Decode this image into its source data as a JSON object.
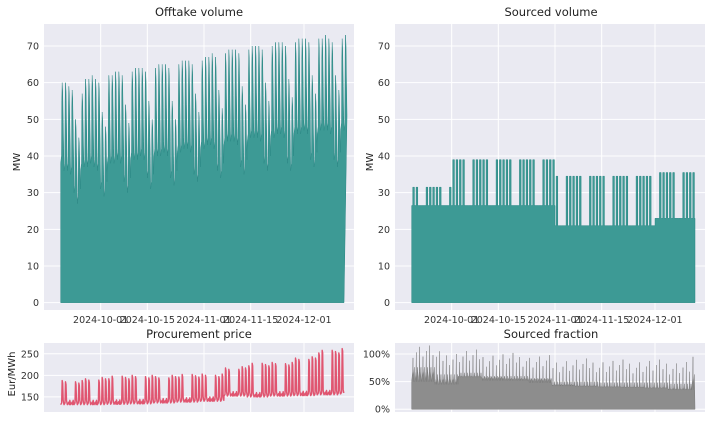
{
  "colors": {
    "panel_bg": "#eaeaf2",
    "volume_fill": "#3d9a95",
    "volume_line": "#2a8784",
    "price_line": "#e05570",
    "fraction_fill": "#8d8d8d"
  },
  "chart_data": [
    {
      "id": "offtake",
      "type": "area",
      "title": "Offtake volume",
      "ylabel": "MW",
      "ylim": [
        -2,
        76
      ],
      "yticks": [
        0,
        10,
        20,
        30,
        40,
        50,
        60,
        70
      ],
      "xlim": [
        "2024-09-14",
        "2024-12-16"
      ],
      "xticks": [
        "2024-10-01",
        "2024-10-15",
        "2024-11-01",
        "2024-11-15",
        "2024-12-01"
      ],
      "x_start": "2024-09-19",
      "x_end": "2024-12-13",
      "series": [
        {
          "daily_peak": [
            60,
            60,
            59,
            58,
            50,
            45,
            57,
            61,
            61,
            62,
            61,
            60,
            52,
            48,
            62,
            62,
            63,
            63,
            62,
            54,
            49,
            63,
            64,
            64,
            64,
            63,
            55,
            50,
            64,
            65,
            65,
            65,
            64,
            55,
            50,
            65,
            66,
            66,
            66,
            65,
            57,
            52,
            66,
            67,
            67,
            68,
            67,
            58,
            53,
            68,
            69,
            69,
            69,
            68,
            59,
            54,
            69,
            70,
            70,
            70,
            69,
            60,
            55,
            70,
            71,
            71,
            71,
            70,
            61,
            56,
            71,
            72,
            72,
            72,
            71,
            62,
            57,
            72,
            72,
            73,
            72,
            71,
            62,
            58,
            72,
            73
          ],
          "daily_trough": [
            38,
            36,
            36,
            35,
            30,
            27,
            36,
            37,
            37,
            38,
            37,
            36,
            31,
            29,
            38,
            38,
            38,
            39,
            38,
            33,
            30,
            39,
            39,
            39,
            40,
            39,
            34,
            31,
            40,
            40,
            40,
            41,
            40,
            34,
            32,
            41,
            41,
            42,
            42,
            41,
            35,
            33,
            42,
            42,
            43,
            43,
            42,
            36,
            34,
            43,
            44,
            44,
            44,
            43,
            37,
            35,
            44,
            45,
            45,
            45,
            44,
            38,
            36,
            45,
            45,
            46,
            46,
            45,
            38,
            36,
            46,
            46,
            46,
            47,
            46,
            39,
            37,
            46,
            47,
            47,
            47,
            46,
            39,
            37,
            47,
            47
          ]
        }
      ]
    },
    {
      "id": "sourced",
      "type": "area",
      "title": "Sourced volume",
      "ylabel": "MW",
      "ylim": [
        -2,
        76
      ],
      "yticks": [
        0,
        10,
        20,
        30,
        40,
        50,
        60,
        70
      ],
      "xlim": [
        "2024-09-14",
        "2024-12-16"
      ],
      "xticks": [
        "2024-10-01",
        "2024-10-15",
        "2024-11-01",
        "2024-11-15",
        "2024-12-01"
      ],
      "x_start": "2024-09-19",
      "x_end": "2024-12-13",
      "series": [
        {
          "segments": [
            {
              "from": "2024-09-19",
              "to": "2024-10-01",
              "base": 26.5,
              "peak": 31.5
            },
            {
              "from": "2024-10-01",
              "to": "2024-11-01",
              "base": 26.5,
              "peak": 39
            },
            {
              "from": "2024-11-01",
              "to": "2024-12-01",
              "base": 21,
              "peak": 34.5
            },
            {
              "from": "2024-12-01",
              "to": "2024-12-13",
              "base": 23,
              "peak": 35.5
            }
          ]
        }
      ]
    },
    {
      "id": "price",
      "type": "line",
      "title": "Procurement price",
      "ylabel": "Eur/MWh",
      "ylim": [
        115,
        275
      ],
      "yticks": [
        150,
        200,
        250
      ],
      "xlim": [
        "2024-09-14",
        "2024-12-16"
      ],
      "x_start": "2024-09-19",
      "x_end": "2024-12-13",
      "series": [
        {
          "weekly_peak": [
            188,
            195,
            198,
            200,
            200,
            202,
            203,
            220,
            228,
            230,
            243,
            258,
            262
          ],
          "weekly_base": [
            132,
            132,
            133,
            134,
            136,
            138,
            140,
            152,
            150,
            152,
            153,
            155,
            157
          ]
        }
      ]
    },
    {
      "id": "fraction",
      "type": "area",
      "title": "Sourced fraction",
      "ylim": [
        -0.05,
        1.2
      ],
      "yticks": [
        0,
        0.5,
        1.0
      ],
      "yticklabels": [
        "0%",
        "50%",
        "100%"
      ],
      "xlim": [
        "2024-09-14",
        "2024-12-16"
      ],
      "x_start": "2024-09-19",
      "x_end": "2024-12-13",
      "series": [
        {
          "weekly_base": [
            0.68,
            0.55,
            0.58,
            0.52,
            0.52,
            0.48,
            0.42,
            0.42,
            0.4,
            0.4,
            0.4,
            0.38,
            0.55
          ],
          "weekly_floor": [
            0.5,
            0.45,
            0.6,
            0.58,
            0.56,
            0.55,
            0.45,
            0.42,
            0.41,
            0.4,
            0.38,
            0.35,
            0.35
          ]
        }
      ]
    }
  ]
}
